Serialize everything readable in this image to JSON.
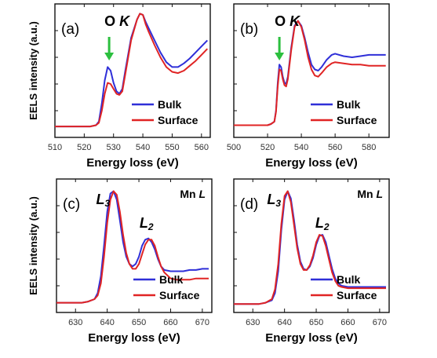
{
  "colors": {
    "bulk": "#2f2fd8",
    "surface": "#e02424",
    "arrow": "#2bbf3e",
    "frame": "#111111"
  },
  "chart_data": [
    {
      "type": "line",
      "panel_label": "(a)",
      "annotation": {
        "element": "O",
        "edge": "K"
      },
      "xlabel": "Energy loss (eV)",
      "ylabel": "EELS intensity (a.u.)",
      "xlim": [
        510,
        563
      ],
      "ylim": [
        0,
        1.1
      ],
      "xticks": [
        510,
        520,
        530,
        540,
        550,
        560
      ],
      "marker_arrow": {
        "x": 528.5,
        "label": ""
      },
      "legend": {
        "position": "lower-right",
        "entries": [
          "Bulk",
          "Surface"
        ]
      },
      "series": [
        {
          "name": "Bulk",
          "x": [
            510,
            514,
            518,
            522,
            524,
            525,
            526,
            527,
            528,
            529,
            530,
            531,
            532,
            533,
            534,
            536,
            538,
            539,
            540,
            541,
            542,
            544,
            546,
            548,
            550,
            552,
            554,
            556,
            558,
            560,
            562
          ],
          "y": [
            0.09,
            0.09,
            0.09,
            0.09,
            0.1,
            0.13,
            0.28,
            0.47,
            0.58,
            0.55,
            0.45,
            0.38,
            0.36,
            0.4,
            0.55,
            0.82,
            0.97,
            1.02,
            1.01,
            0.95,
            0.9,
            0.8,
            0.7,
            0.62,
            0.58,
            0.58,
            0.61,
            0.65,
            0.7,
            0.75,
            0.8
          ]
        },
        {
          "name": "Surface",
          "x": [
            510,
            514,
            518,
            522,
            524,
            525,
            526,
            527,
            528,
            529,
            530,
            531,
            532,
            533,
            534,
            536,
            538,
            539,
            540,
            541,
            542,
            544,
            546,
            548,
            550,
            552,
            554,
            556,
            558,
            560,
            562
          ],
          "y": [
            0.09,
            0.09,
            0.09,
            0.09,
            0.1,
            0.12,
            0.22,
            0.36,
            0.45,
            0.44,
            0.4,
            0.36,
            0.35,
            0.38,
            0.52,
            0.8,
            0.97,
            1.02,
            1.01,
            0.93,
            0.87,
            0.76,
            0.66,
            0.58,
            0.54,
            0.53,
            0.55,
            0.59,
            0.63,
            0.68,
            0.73
          ]
        }
      ]
    },
    {
      "type": "line",
      "panel_label": "(b)",
      "annotation": {
        "element": "O",
        "edge": "K"
      },
      "xlabel": "Energy loss (eV)",
      "ylabel": "",
      "xlim": [
        500,
        592
      ],
      "ylim": [
        0,
        1.1
      ],
      "xticks": [
        500,
        520,
        540,
        560,
        580
      ],
      "marker_arrow": {
        "x": 527,
        "label": ""
      },
      "legend": {
        "position": "lower-right",
        "entries": [
          "Bulk",
          "Surface"
        ]
      },
      "series": [
        {
          "name": "Bulk",
          "x": [
            500,
            505,
            510,
            515,
            520,
            522,
            524,
            525,
            526,
            527,
            528,
            529,
            530,
            531,
            532,
            534,
            536,
            538,
            540,
            542,
            544,
            546,
            548,
            550,
            552,
            555,
            558,
            560,
            565,
            570,
            575,
            580,
            585,
            590
          ],
          "y": [
            0.1,
            0.1,
            0.1,
            0.1,
            0.1,
            0.11,
            0.13,
            0.22,
            0.45,
            0.6,
            0.58,
            0.5,
            0.45,
            0.44,
            0.5,
            0.74,
            0.92,
            0.96,
            0.92,
            0.82,
            0.7,
            0.6,
            0.56,
            0.55,
            0.58,
            0.64,
            0.68,
            0.69,
            0.67,
            0.66,
            0.67,
            0.68,
            0.68,
            0.68
          ]
        },
        {
          "name": "Surface",
          "x": [
            500,
            505,
            510,
            515,
            520,
            522,
            524,
            525,
            526,
            527,
            528,
            529,
            530,
            531,
            532,
            534,
            536,
            538,
            540,
            542,
            544,
            546,
            548,
            550,
            552,
            555,
            558,
            560,
            565,
            570,
            575,
            580,
            585,
            590
          ],
          "y": [
            0.1,
            0.1,
            0.1,
            0.1,
            0.1,
            0.11,
            0.13,
            0.21,
            0.42,
            0.56,
            0.55,
            0.48,
            0.43,
            0.42,
            0.48,
            0.72,
            0.91,
            0.96,
            0.91,
            0.8,
            0.66,
            0.56,
            0.51,
            0.5,
            0.53,
            0.58,
            0.61,
            0.62,
            0.61,
            0.6,
            0.6,
            0.59,
            0.59,
            0.59
          ]
        }
      ]
    },
    {
      "type": "line",
      "panel_label": "(c)",
      "annotation": {
        "element": "Mn",
        "edge": "L",
        "peaks": [
          {
            "letter": "L",
            "sub": "3"
          },
          {
            "letter": "L",
            "sub": "2"
          }
        ]
      },
      "xlabel": "Energy loss (eV)",
      "ylabel": "EELS intensity (a.u.)",
      "xlim": [
        624,
        673
      ],
      "ylim": [
        0,
        1.1
      ],
      "xticks": [
        630,
        640,
        650,
        660,
        670
      ],
      "legend": {
        "position": "lower-right",
        "entries": [
          "Bulk",
          "Surface"
        ]
      },
      "series": [
        {
          "name": "Bulk",
          "x": [
            624,
            628,
            632,
            634,
            636,
            637,
            638,
            639,
            640,
            641,
            642,
            643,
            644,
            645,
            646,
            647,
            648,
            649,
            650,
            651,
            652,
            653,
            654,
            655,
            656,
            657,
            658,
            660,
            662,
            664,
            666,
            668,
            670,
            672
          ],
          "y": [
            0.08,
            0.08,
            0.08,
            0.09,
            0.11,
            0.16,
            0.3,
            0.55,
            0.83,
            0.98,
            1.0,
            0.93,
            0.76,
            0.58,
            0.46,
            0.4,
            0.38,
            0.4,
            0.46,
            0.55,
            0.6,
            0.61,
            0.58,
            0.52,
            0.44,
            0.38,
            0.35,
            0.34,
            0.34,
            0.34,
            0.35,
            0.35,
            0.36,
            0.36
          ]
        },
        {
          "name": "Surface",
          "x": [
            624,
            628,
            632,
            634,
            636,
            637,
            638,
            639,
            640,
            641,
            642,
            643,
            644,
            645,
            646,
            647,
            648,
            649,
            650,
            651,
            652,
            653,
            654,
            655,
            656,
            657,
            658,
            660,
            662,
            664,
            666,
            668,
            670,
            672
          ],
          "y": [
            0.08,
            0.08,
            0.08,
            0.09,
            0.11,
            0.14,
            0.24,
            0.46,
            0.74,
            0.93,
            1.0,
            0.97,
            0.83,
            0.64,
            0.49,
            0.4,
            0.36,
            0.36,
            0.4,
            0.48,
            0.56,
            0.6,
            0.6,
            0.55,
            0.46,
            0.38,
            0.33,
            0.28,
            0.27,
            0.27,
            0.27,
            0.28,
            0.28,
            0.28
          ]
        }
      ]
    },
    {
      "type": "line",
      "panel_label": "(d)",
      "annotation": {
        "element": "Mn",
        "edge": "L",
        "peaks": [
          {
            "letter": "L",
            "sub": "3"
          },
          {
            "letter": "L",
            "sub": "2"
          }
        ]
      },
      "xlabel": "Energy loss (eV)",
      "ylabel": "",
      "xlim": [
        624,
        673
      ],
      "ylim": [
        0,
        1.1
      ],
      "xticks": [
        630,
        640,
        650,
        660,
        670
      ],
      "legend": {
        "position": "lower-right",
        "entries": [
          "Bulk",
          "Surface"
        ]
      },
      "series": [
        {
          "name": "Bulk",
          "x": [
            624,
            628,
            632,
            634,
            636,
            637,
            638,
            639,
            640,
            641,
            642,
            643,
            644,
            645,
            646,
            647,
            648,
            649,
            650,
            651,
            652,
            653,
            654,
            655,
            656,
            657,
            658,
            660,
            662,
            664,
            666,
            668,
            670,
            672
          ],
          "y": [
            0.07,
            0.07,
            0.07,
            0.08,
            0.1,
            0.16,
            0.34,
            0.68,
            0.93,
            1.0,
            0.94,
            0.76,
            0.56,
            0.42,
            0.36,
            0.35,
            0.38,
            0.45,
            0.56,
            0.63,
            0.64,
            0.58,
            0.47,
            0.36,
            0.28,
            0.24,
            0.22,
            0.21,
            0.21,
            0.21,
            0.21,
            0.21,
            0.21,
            0.21
          ]
        },
        {
          "name": "Surface",
          "x": [
            624,
            628,
            632,
            634,
            636,
            637,
            638,
            639,
            640,
            641,
            642,
            643,
            644,
            645,
            646,
            647,
            648,
            649,
            650,
            651,
            652,
            653,
            654,
            655,
            656,
            657,
            658,
            660,
            662,
            664,
            666,
            668,
            670,
            672
          ],
          "y": [
            0.07,
            0.07,
            0.07,
            0.08,
            0.11,
            0.19,
            0.4,
            0.73,
            0.96,
            1.0,
            0.91,
            0.72,
            0.53,
            0.4,
            0.35,
            0.35,
            0.39,
            0.47,
            0.58,
            0.64,
            0.63,
            0.55,
            0.44,
            0.33,
            0.26,
            0.22,
            0.21,
            0.2,
            0.2,
            0.2,
            0.2,
            0.2,
            0.2,
            0.2
          ]
        }
      ]
    }
  ]
}
